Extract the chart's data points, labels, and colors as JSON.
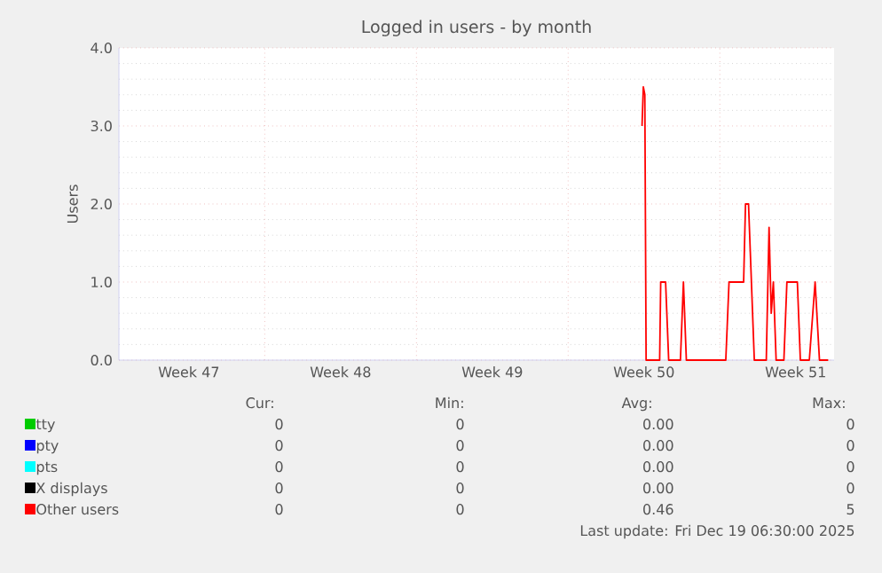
{
  "chart_data": {
    "type": "line",
    "title": "Logged in users - by month",
    "ylabel": "Users",
    "xlim": [
      "2025-11-16T06:30",
      "2025-12-19T06:30"
    ],
    "xticks": [
      {
        "value": "2025-11-19T12:00",
        "label": "Week 47"
      },
      {
        "value": "2025-11-23",
        "label": null
      },
      {
        "value": "2025-11-26T12:00",
        "label": "Week 48"
      },
      {
        "value": "2025-11-30",
        "label": null
      },
      {
        "value": "2025-12-03T12:00",
        "label": "Week 49"
      },
      {
        "value": "2025-12-07",
        "label": null
      },
      {
        "value": "2025-12-10T12:00",
        "label": "Week 50"
      },
      {
        "value": "2025-12-14",
        "label": null
      },
      {
        "value": "2025-12-17T12:00",
        "label": "Week 51"
      }
    ],
    "ylim": [
      0,
      4
    ],
    "yticks": [
      {
        "value": 0,
        "label": "0.0"
      },
      {
        "value": 1,
        "label": "1.0"
      },
      {
        "value": 2,
        "label": "2.0"
      },
      {
        "value": 3,
        "label": "3.0"
      },
      {
        "value": 4,
        "label": "4.0"
      }
    ],
    "grid": true,
    "legend": "bottom",
    "series": [
      {
        "name": "tty",
        "color": "#00cc00"
      },
      {
        "name": "pty",
        "color": "#0000ff"
      },
      {
        "name": "pts",
        "color": "#00ffff"
      },
      {
        "name": "X displays",
        "color": "#000000"
      },
      {
        "name": "Other users",
        "color": "#ff0000",
        "x": [
          "2025-12-10T09:50",
          "2025-12-10T11:15",
          "2025-12-10T12:55",
          "2025-12-10T14:20",
          "2025-12-11T05:20",
          "2025-12-11T06:30",
          "2025-12-11T11:55",
          "2025-12-11T15:20",
          "2025-12-12T04:20",
          "2025-12-12T07:40",
          "2025-12-12T10:55",
          "2025-12-14T06:35",
          "2025-12-14T10:10",
          "2025-12-15T02:20",
          "2025-12-15T04:25",
          "2025-12-15T07:45",
          "2025-12-15T14:10",
          "2025-12-16T03:25",
          "2025-12-16T06:30",
          "2025-12-16T08:55",
          "2025-12-16T11:15",
          "2025-12-16T14:20",
          "2025-12-16T22:55",
          "2025-12-17T02:15",
          "2025-12-17T13:50",
          "2025-12-17T17:10",
          "2025-12-18T03:05",
          "2025-12-18T09:30",
          "2025-12-18T14:20",
          "2025-12-19T00:00"
        ],
        "values": [
          3.0,
          3.5,
          3.4,
          0,
          0,
          1,
          1,
          0,
          0,
          1,
          0,
          0,
          1,
          1,
          2,
          2,
          0,
          0,
          1.7,
          0.6,
          1,
          0,
          0,
          1,
          1,
          0,
          0,
          1,
          0,
          0
        ]
      }
    ],
    "annotations": [
      "Cur:",
      "Min:",
      "Avg:",
      "Max:",
      "0",
      "0",
      "0.00",
      "0",
      "0",
      "0",
      "0.00",
      "0",
      "0",
      "0",
      "0.00",
      "0",
      "0",
      "0",
      "0.00",
      "0",
      "0",
      "0",
      "0.46",
      "5",
      "Last update: Fri Dec 19 06:30:00 2025"
    ]
  }
}
